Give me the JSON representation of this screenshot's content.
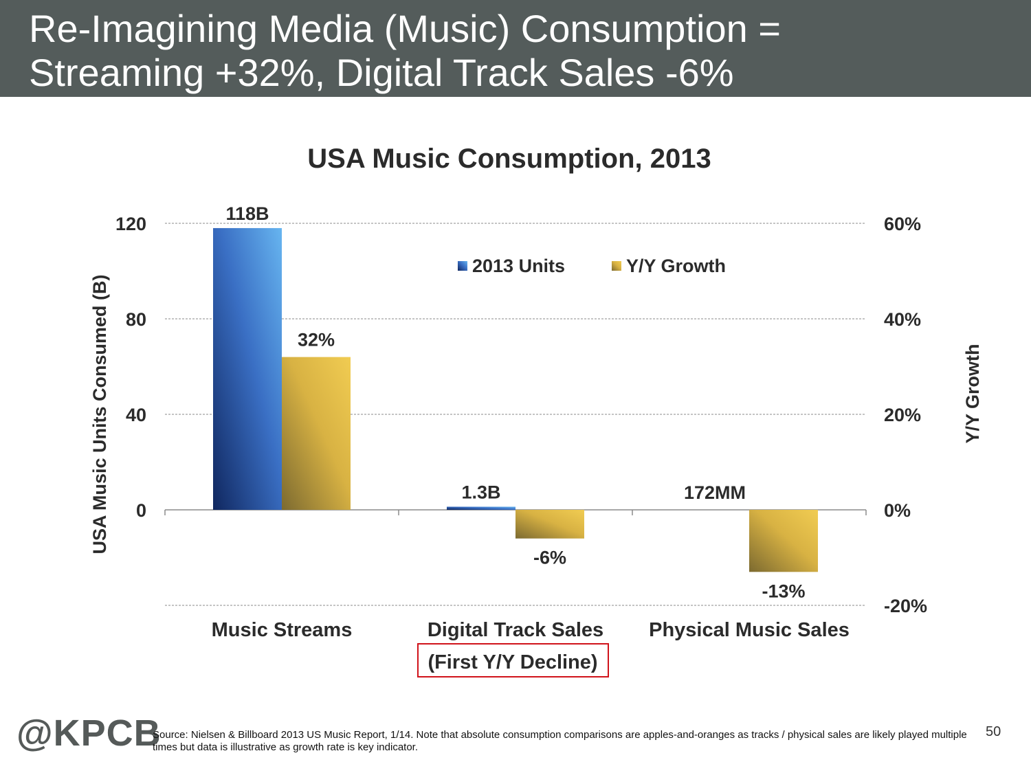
{
  "slide": {
    "title_line1": "Re-Imagining Media (Music) Consumption =",
    "title_line2": "Streaming +32%, Digital Track Sales -6%",
    "title_bar_color": "#545c5b",
    "logo": "@KPCB",
    "source": "Source: Nielsen & Billboard 2013 US Music Report, 1/14. Note that absolute consumption comparisons are apples-and-oranges as tracks / physical sales are likely played multiple times but data is illustrative as growth rate is key indicator.",
    "page_number": "50"
  },
  "chart_data": {
    "type": "bar",
    "title": "USA Music Consumption, 2013",
    "categories": [
      "Music Streams",
      "Digital Track Sales",
      "Physical Music Sales"
    ],
    "category_note": "(First Y/Y Decline)",
    "series": [
      {
        "name": "2013 Units",
        "axis": "left",
        "values": [
          118,
          1.3,
          0.172
        ],
        "data_labels": [
          "118B",
          "1.3B",
          "172MM"
        ],
        "color": "#3a6fc4"
      },
      {
        "name": "Y/Y Growth",
        "axis": "right",
        "values": [
          32,
          -6,
          -13
        ],
        "data_labels": [
          "32%",
          "-6%",
          "-13%"
        ],
        "color": "#d8b243"
      }
    ],
    "ylabel": "USA Music Units Consumed (B)",
    "ylabel_right": "Y/Y Growth",
    "ylim": [
      -40,
      120
    ],
    "ylim_right": [
      -20,
      60
    ],
    "yticks": [
      "120",
      "80",
      "40",
      "0"
    ],
    "yticks_right": [
      "60%",
      "40%",
      "20%",
      "0%",
      "-20%"
    ],
    "grid": true,
    "legend_position": "top-center"
  }
}
